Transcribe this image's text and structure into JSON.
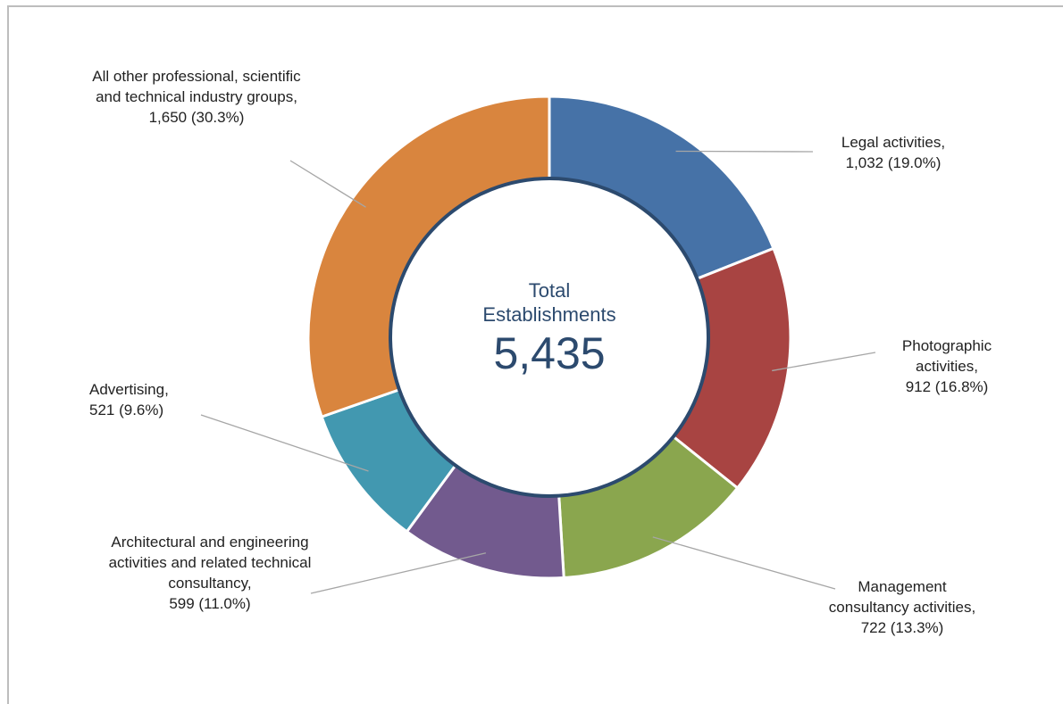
{
  "chart_data": {
    "type": "donut",
    "center_label": "Total Establishments",
    "total": 5435,
    "total_label": "5,435",
    "categories": [
      "Legal activities,",
      "Photographic activities,",
      "Management consultancy activities,",
      "Architectural and engineering activities and related technical consultancy,",
      "Advertising,",
      "All other professional, scientific and technical industry groups,"
    ],
    "values": [
      1032,
      912,
      722,
      599,
      521,
      1650
    ],
    "value_labels": [
      "1,032 (19.0%)",
      "912 (16.8%)",
      "722 (13.3%)",
      "599 (11.0%)",
      "521 (9.6%)",
      "1,650 (30.3%)"
    ],
    "colors": [
      "#4672a7",
      "#a84442",
      "#8aa64e",
      "#725a8e",
      "#4298b0",
      "#d9853e"
    ]
  }
}
